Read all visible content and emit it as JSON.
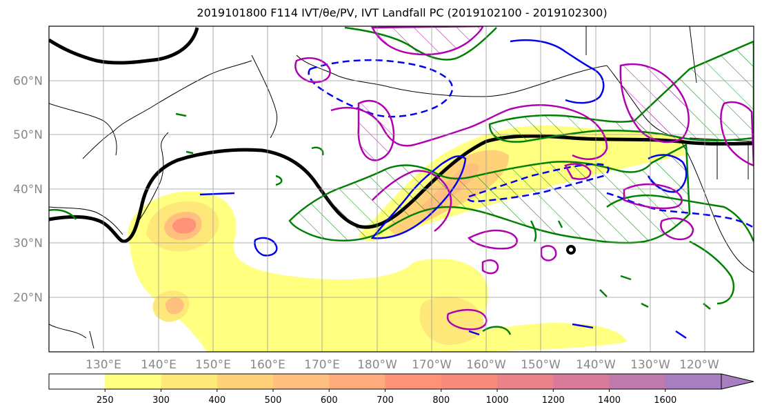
{
  "title": "2019101800 F114 IVT/θe/PV, IVT Landfall PC (2019102100 - 2019102300)",
  "lat_labels": [
    "60°N",
    "50°N",
    "40°N",
    "30°N",
    "20°N"
  ],
  "lon_labels": [
    "130°E",
    "140°E",
    "150°E",
    "160°E",
    "170°E",
    "180°W",
    "170°W",
    "160°W",
    "150°W",
    "140°W",
    "130°W",
    "120°W"
  ],
  "colorbar": {
    "ticks": [
      "250",
      "300",
      "400",
      "500",
      "600",
      "700",
      "800",
      "1000",
      "1200",
      "1400",
      "1600"
    ],
    "colors": [
      "#ffffff",
      "#ffff80",
      "#ffe87a",
      "#ffd27a",
      "#ffbf7e",
      "#ffab7e",
      "#ff9279",
      "#f88b7e",
      "#ea8289",
      "#d87b9a",
      "#be7aad",
      "#a77ebf"
    ]
  },
  "contour_colors": {
    "theta_e": "#000000",
    "pv": "#b000b0",
    "ivt_pc_pos": "#008000",
    "ivt_pc_neg": "#0000ee"
  }
}
